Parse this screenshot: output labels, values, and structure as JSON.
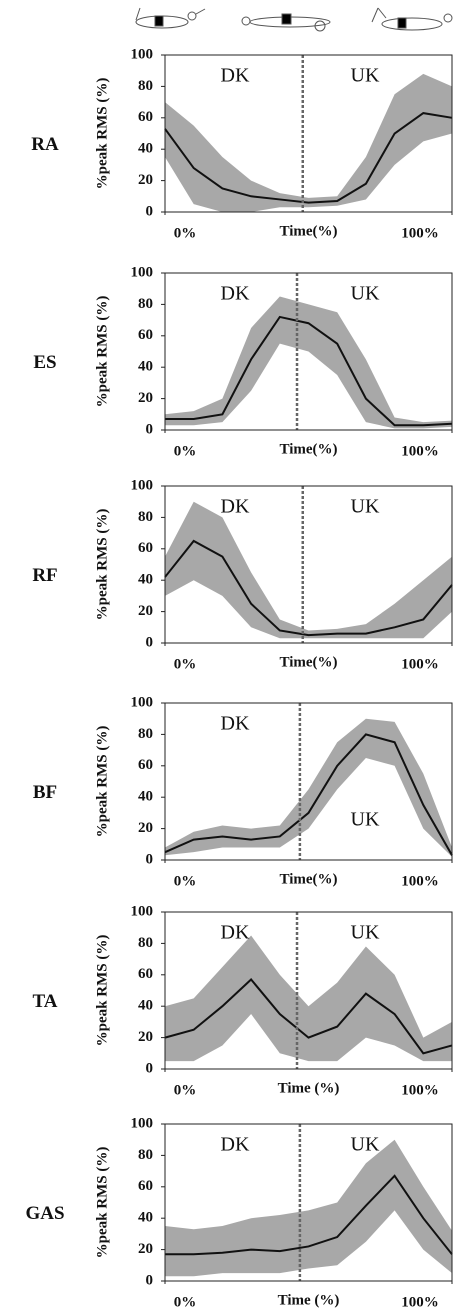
{
  "chart_data": [
    {
      "type": "line",
      "title": "RA",
      "y_label": "%peak RMS (%)",
      "x_label": "Time(%)",
      "annotations": [
        "DK",
        "UK"
      ],
      "x": [
        0,
        10,
        20,
        30,
        40,
        50,
        60,
        70,
        80,
        90,
        100
      ],
      "series": [
        {
          "color": "#111111",
          "band_color": "#a8a8a8",
          "values": [
            53,
            28,
            15,
            10,
            8,
            6,
            7,
            18,
            50,
            63,
            60
          ],
          "lower": [
            35,
            5,
            0,
            0,
            3,
            3,
            4,
            8,
            30,
            45,
            50
          ],
          "upper": [
            70,
            55,
            35,
            20,
            12,
            9,
            10,
            35,
            75,
            88,
            80
          ]
        }
      ],
      "xlim": [
        0,
        100
      ],
      "ylim": [
        0,
        100
      ],
      "yticks": [
        0,
        20,
        40,
        60,
        80,
        100
      ],
      "xticks": [
        {
          "value": 0,
          "label": "0%"
        },
        {
          "value": 100,
          "label": "100%"
        }
      ],
      "phase_boundary": 48
    },
    {
      "type": "line",
      "title": "ES",
      "y_label": "%peak RMS (%)",
      "x_label": "Time(%)",
      "annotations": [
        "DK",
        "UK"
      ],
      "x": [
        0,
        10,
        20,
        30,
        40,
        50,
        60,
        70,
        80,
        90,
        100
      ],
      "series": [
        {
          "color": "#111111",
          "band_color": "#a8a8a8",
          "values": [
            7,
            7,
            10,
            45,
            72,
            68,
            55,
            20,
            3,
            3,
            4
          ],
          "lower": [
            3,
            3,
            5,
            25,
            55,
            50,
            35,
            5,
            1,
            1,
            2
          ],
          "upper": [
            10,
            12,
            20,
            65,
            85,
            80,
            75,
            45,
            8,
            5,
            6
          ]
        }
      ],
      "xlim": [
        0,
        100
      ],
      "ylim": [
        0,
        100
      ],
      "yticks": [
        0,
        20,
        40,
        60,
        80,
        100
      ],
      "xticks": [
        {
          "value": 0,
          "label": "0%"
        },
        {
          "value": 100,
          "label": "100%"
        }
      ],
      "phase_boundary": 46
    },
    {
      "type": "line",
      "title": "RF",
      "y_label": "%peak RMS (%)",
      "x_label": "Time(%)",
      "annotations": [
        "DK",
        "UK"
      ],
      "x": [
        0,
        10,
        20,
        30,
        40,
        50,
        60,
        70,
        80,
        90,
        100
      ],
      "series": [
        {
          "color": "#111111",
          "band_color": "#a8a8a8",
          "values": [
            42,
            65,
            55,
            25,
            8,
            5,
            6,
            6,
            10,
            15,
            37
          ],
          "lower": [
            30,
            40,
            30,
            10,
            3,
            3,
            3,
            3,
            3,
            3,
            20
          ],
          "upper": [
            55,
            90,
            80,
            45,
            15,
            8,
            9,
            12,
            25,
            40,
            55
          ]
        }
      ],
      "xlim": [
        0,
        100
      ],
      "ylim": [
        0,
        100
      ],
      "yticks": [
        0,
        20,
        40,
        60,
        80,
        100
      ],
      "xticks": [
        {
          "value": 0,
          "label": "0%"
        },
        {
          "value": 100,
          "label": "100%"
        }
      ],
      "phase_boundary": 48
    },
    {
      "type": "line",
      "title": "BF",
      "y_label": "%peak RMS (%)",
      "x_label": "Time(%)",
      "annotations": [
        "DK",
        "UK"
      ],
      "x": [
        0,
        10,
        20,
        30,
        40,
        50,
        60,
        70,
        80,
        90,
        100
      ],
      "series": [
        {
          "color": "#111111",
          "band_color": "#a8a8a8",
          "values": [
            5,
            13,
            15,
            13,
            15,
            30,
            60,
            80,
            75,
            35,
            3
          ],
          "lower": [
            3,
            5,
            8,
            8,
            8,
            20,
            45,
            65,
            60,
            20,
            2
          ],
          "upper": [
            8,
            18,
            22,
            20,
            22,
            45,
            75,
            90,
            88,
            55,
            8
          ]
        }
      ],
      "xlim": [
        0,
        100
      ],
      "ylim": [
        0,
        100
      ],
      "yticks": [
        0,
        20,
        40,
        60,
        80,
        100
      ],
      "xticks": [
        {
          "value": 0,
          "label": "0%"
        },
        {
          "value": 100,
          "label": "100%"
        }
      ],
      "phase_boundary": 47
    },
    {
      "type": "line",
      "title": "TA",
      "y_label": "%peak RMS (%)",
      "x_label": "Time (%)",
      "annotations": [
        "DK",
        "UK"
      ],
      "x": [
        0,
        10,
        20,
        30,
        40,
        50,
        60,
        70,
        80,
        90,
        100
      ],
      "series": [
        {
          "color": "#111111",
          "band_color": "#a8a8a8",
          "values": [
            20,
            25,
            40,
            57,
            35,
            20,
            27,
            48,
            35,
            10,
            15
          ],
          "lower": [
            5,
            5,
            15,
            35,
            10,
            5,
            5,
            20,
            15,
            5,
            5
          ],
          "upper": [
            40,
            45,
            65,
            85,
            60,
            40,
            55,
            78,
            60,
            20,
            30
          ]
        }
      ],
      "xlim": [
        0,
        100
      ],
      "ylim": [
        0,
        100
      ],
      "yticks": [
        0,
        20,
        40,
        60,
        80,
        100
      ],
      "xticks": [
        {
          "value": 0,
          "label": "0%"
        },
        {
          "value": 100,
          "label": "100%"
        }
      ],
      "phase_boundary": 46
    },
    {
      "type": "line",
      "title": "GAS",
      "y_label": "%peak RMS (%)",
      "x_label": "Time (%)",
      "annotations": [
        "DK",
        "UK"
      ],
      "x": [
        0,
        10,
        20,
        30,
        40,
        50,
        60,
        70,
        80,
        90,
        100
      ],
      "series": [
        {
          "color": "#111111",
          "band_color": "#a8a8a8",
          "values": [
            17,
            17,
            18,
            20,
            19,
            22,
            28,
            48,
            67,
            40,
            17
          ],
          "lower": [
            3,
            3,
            5,
            5,
            5,
            8,
            10,
            25,
            45,
            20,
            5
          ],
          "upper": [
            35,
            33,
            35,
            40,
            42,
            45,
            50,
            75,
            90,
            60,
            32
          ]
        }
      ],
      "xlim": [
        0,
        100
      ],
      "ylim": [
        0,
        100
      ],
      "yticks": [
        0,
        20,
        40,
        60,
        80,
        100
      ],
      "xticks": [
        {
          "value": 0,
          "label": "0%"
        },
        {
          "value": 100,
          "label": "100%"
        }
      ],
      "phase_boundary": 47
    }
  ]
}
